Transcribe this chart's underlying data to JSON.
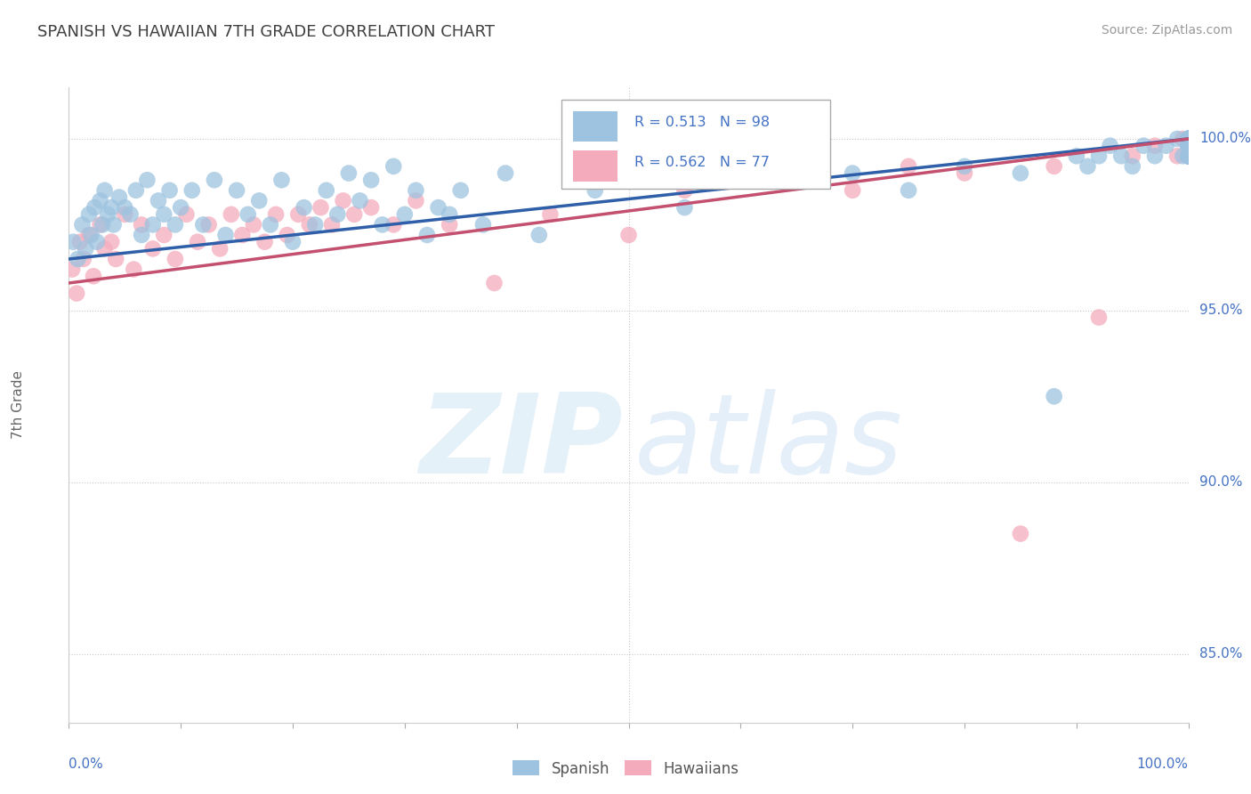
{
  "title": "SPANISH VS HAWAIIAN 7TH GRADE CORRELATION CHART",
  "source_text": "Source: ZipAtlas.com",
  "ylabel": "7th Grade",
  "watermark_zip": "ZIP",
  "watermark_atlas": "atlas",
  "blue_label": "Spanish",
  "pink_label": "Hawaiians",
  "blue_R": 0.513,
  "blue_N": 98,
  "pink_R": 0.562,
  "pink_N": 77,
  "blue_color": "#9DC3E0",
  "pink_color": "#F4ACBC",
  "blue_line_color": "#2F5FA8",
  "pink_line_color": "#C45070",
  "legend_text_color": "#4472C4",
  "axis_label_color": "#4472C4",
  "right_tick_color": "#4472C4",
  "title_color": "#404040",
  "grid_color": "#C8C8C8",
  "background_color": "#FFFFFF",
  "xmin": 0.0,
  "xmax": 100.0,
  "ymin": 83.0,
  "ymax": 101.5,
  "yticks": [
    85.0,
    90.0,
    95.0,
    100.0
  ],
  "blue_line_y_start": 96.5,
  "blue_line_y_end": 100.0,
  "pink_line_y_start": 95.8,
  "pink_line_y_end": 100.0,
  "blue_scatter_x": [
    0.4,
    0.8,
    1.2,
    1.5,
    1.8,
    2.0,
    2.3,
    2.5,
    2.8,
    3.0,
    3.2,
    3.5,
    3.8,
    4.0,
    4.5,
    5.0,
    5.5,
    6.0,
    6.5,
    7.0,
    7.5,
    8.0,
    8.5,
    9.0,
    9.5,
    10.0,
    11.0,
    12.0,
    13.0,
    14.0,
    15.0,
    16.0,
    17.0,
    18.0,
    19.0,
    20.0,
    21.0,
    22.0,
    23.0,
    24.0,
    25.0,
    26.0,
    27.0,
    28.0,
    29.0,
    30.0,
    31.0,
    32.0,
    33.0,
    34.0,
    35.0,
    37.0,
    39.0,
    42.0,
    47.0,
    55.0,
    60.0,
    65.0,
    70.0,
    75.0,
    80.0,
    85.0,
    88.0,
    90.0,
    91.0,
    92.0,
    93.0,
    94.0,
    95.0,
    96.0,
    97.0,
    98.0,
    99.0,
    99.5,
    100.0,
    100.0,
    100.0,
    100.0,
    100.0,
    100.0,
    100.0,
    100.0,
    100.0,
    100.0,
    100.0,
    100.0,
    100.0,
    100.0,
    100.0,
    100.0,
    100.0,
    100.0,
    100.0,
    100.0,
    100.0,
    100.0,
    100.0,
    100.0
  ],
  "blue_scatter_y": [
    97.0,
    96.5,
    97.5,
    96.8,
    97.8,
    97.2,
    98.0,
    97.0,
    98.2,
    97.5,
    98.5,
    97.8,
    98.0,
    97.5,
    98.3,
    98.0,
    97.8,
    98.5,
    97.2,
    98.8,
    97.5,
    98.2,
    97.8,
    98.5,
    97.5,
    98.0,
    98.5,
    97.5,
    98.8,
    97.2,
    98.5,
    97.8,
    98.2,
    97.5,
    98.8,
    97.0,
    98.0,
    97.5,
    98.5,
    97.8,
    99.0,
    98.2,
    98.8,
    97.5,
    99.2,
    97.8,
    98.5,
    97.2,
    98.0,
    97.8,
    98.5,
    97.5,
    99.0,
    97.2,
    98.5,
    98.0,
    99.2,
    98.8,
    99.0,
    98.5,
    99.2,
    99.0,
    92.5,
    99.5,
    99.2,
    99.5,
    99.8,
    99.5,
    99.2,
    99.8,
    99.5,
    99.8,
    100.0,
    99.5,
    100.0,
    99.8,
    100.0,
    99.5,
    100.0,
    99.8,
    100.0,
    99.5,
    99.8,
    100.0,
    99.5,
    100.0,
    99.8,
    99.5,
    100.0,
    99.8,
    100.0,
    99.5,
    100.0,
    99.8,
    100.0,
    99.5,
    100.0,
    99.8
  ],
  "pink_scatter_x": [
    0.3,
    0.7,
    1.0,
    1.3,
    1.8,
    2.2,
    2.8,
    3.2,
    3.8,
    4.2,
    5.0,
    5.8,
    6.5,
    7.5,
    8.5,
    9.5,
    10.5,
    11.5,
    12.5,
    13.5,
    14.5,
    15.5,
    16.5,
    17.5,
    18.5,
    19.5,
    20.5,
    21.5,
    22.5,
    23.5,
    24.5,
    25.5,
    27.0,
    29.0,
    31.0,
    34.0,
    38.0,
    43.0,
    50.0,
    55.0,
    60.0,
    65.0,
    70.0,
    75.0,
    80.0,
    85.0,
    88.0,
    92.0,
    95.0,
    97.0,
    99.0,
    99.5,
    100.0,
    100.0,
    100.0,
    100.0,
    100.0,
    100.0,
    100.0,
    100.0,
    100.0,
    100.0,
    100.0,
    100.0,
    100.0,
    100.0,
    100.0,
    100.0,
    100.0,
    100.0,
    100.0,
    100.0,
    100.0,
    100.0,
    100.0,
    100.0,
    100.0
  ],
  "pink_scatter_y": [
    96.2,
    95.5,
    97.0,
    96.5,
    97.2,
    96.0,
    97.5,
    96.8,
    97.0,
    96.5,
    97.8,
    96.2,
    97.5,
    96.8,
    97.2,
    96.5,
    97.8,
    97.0,
    97.5,
    96.8,
    97.8,
    97.2,
    97.5,
    97.0,
    97.8,
    97.2,
    97.8,
    97.5,
    98.0,
    97.5,
    98.2,
    97.8,
    98.0,
    97.5,
    98.2,
    97.5,
    95.8,
    97.8,
    97.2,
    98.5,
    98.8,
    99.0,
    98.5,
    99.2,
    99.0,
    88.5,
    99.2,
    94.8,
    99.5,
    99.8,
    99.5,
    100.0,
    100.0,
    99.8,
    99.5,
    100.0,
    99.8,
    100.0,
    99.5,
    100.0,
    99.8,
    100.0,
    99.5,
    99.8,
    100.0,
    99.5,
    100.0,
    99.8,
    100.0,
    99.5,
    99.8,
    100.0,
    99.5,
    100.0,
    99.8,
    100.0,
    99.5
  ]
}
